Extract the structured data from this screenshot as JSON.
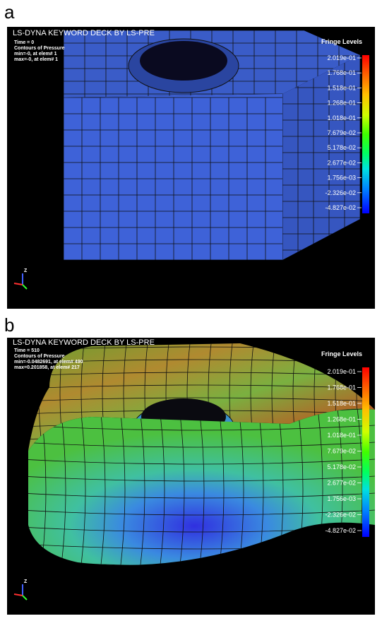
{
  "panels": [
    {
      "label": "a",
      "header": {
        "title": "LS-DYNA KEYWORD DECK BY LS-PRE",
        "time": "Time =       0",
        "contour": "Contours of Pressure",
        "min": "min=-0, at elem# 1",
        "max": "max=-0, at elem# 1"
      },
      "legend": {
        "title": "Fringe Levels",
        "levels": [
          "2.019e-01",
          "1.768e-01",
          "1.518e-01",
          "1.268e-01",
          "1.018e-01",
          "7.679e-02",
          "5.178e-02",
          "2.677e-02",
          "1.756e-03",
          "-2.326e-02",
          "-4.827e-02"
        ]
      },
      "triad": "Z"
    },
    {
      "label": "b",
      "header": {
        "title": "LS-DYNA KEYWORD DECK BY LS-PRE",
        "time": "Time =      510",
        "contour": "Contours of Pressure",
        "min": "min=-0.0482691, at elem# 490",
        "max": "max=0.201858, at elem# 217"
      },
      "legend": {
        "title": "Fringe Levels",
        "levels": [
          "2.019e-01",
          "1.768e-01",
          "1.518e-01",
          "1.268e-01",
          "1.018e-01",
          "7.679e-02",
          "5.178e-02",
          "2.677e-02",
          "1.756e-03",
          "-2.326e-02",
          "-4.827e-02"
        ]
      },
      "triad": "Z"
    }
  ]
}
